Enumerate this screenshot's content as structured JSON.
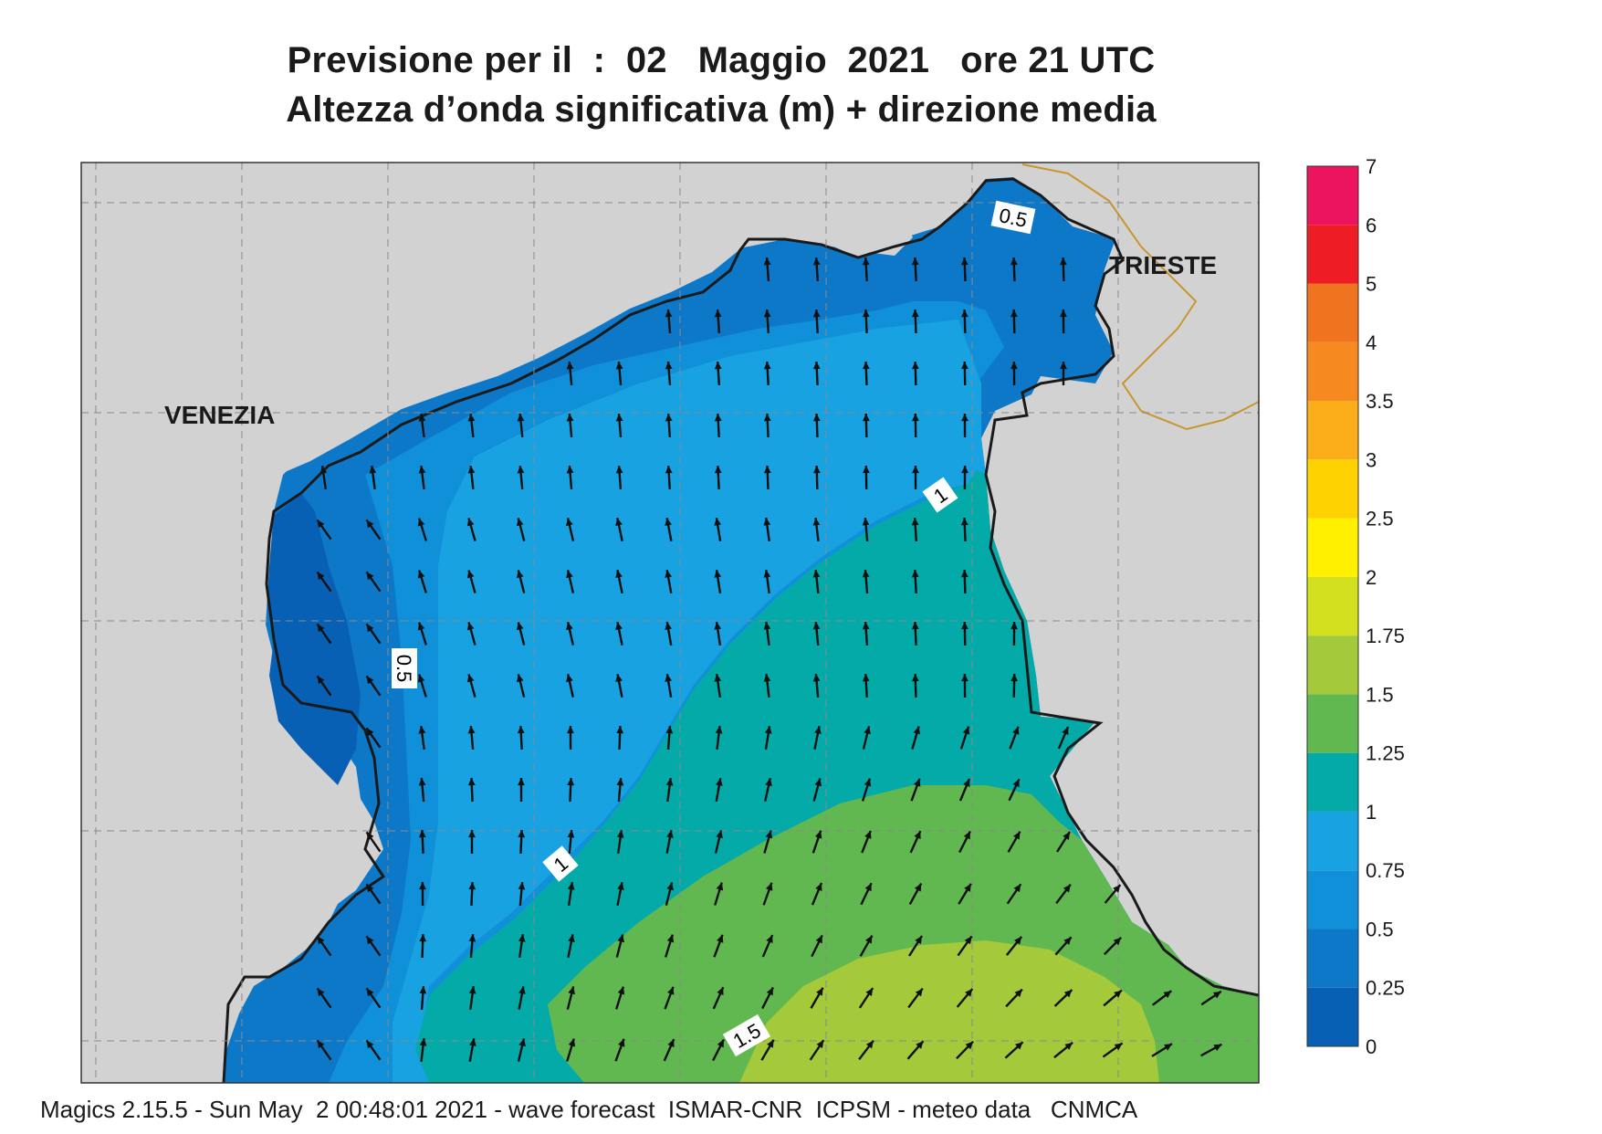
{
  "title": {
    "line1": "Previsione per il  :  02   Maggio  2021   ore 21 UTC",
    "line2": "Altezza d’onda significativa (m) + direzione media"
  },
  "map": {
    "place_labels": [
      "VENEZIA",
      "TRIESTE"
    ],
    "contour_labels": [
      "0.5",
      "0.5",
      "1",
      "1",
      "1.5"
    ],
    "colors": {
      "land": "#d2d2d2",
      "coast": "#1a1a1a",
      "border": "#c8962e",
      "grid": "#8a8a8a"
    },
    "arrow_color": "#111111"
  },
  "legend": {
    "levels": [
      "0",
      "0.25",
      "0.5",
      "0.75",
      "1",
      "1.25",
      "1.5",
      "1.75",
      "2",
      "2.5",
      "3",
      "3.5",
      "4",
      "5",
      "6",
      "7"
    ],
    "colors": [
      "#0860b4",
      "#0d78c8",
      "#1090d8",
      "#18a2e2",
      "#04aaa8",
      "#62b850",
      "#a4ca3c",
      "#d2e020",
      "#fff000",
      "#fed200",
      "#fbad1a",
      "#f68a20",
      "#f0731f",
      "#ee1c25",
      "#ec145e"
    ]
  },
  "footer": "Magics 2.15.5 - Sun May  2 00:48:01 2021 - wave forecast  ISMAR-CNR  ICPSM - meteo data   CNMCA"
}
